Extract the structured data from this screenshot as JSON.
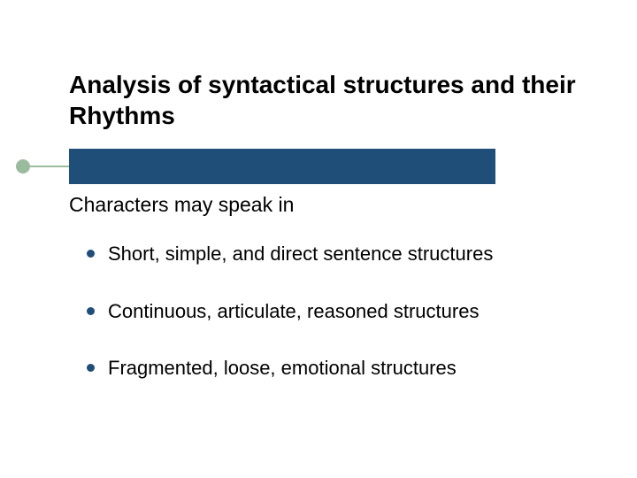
{
  "slide": {
    "title": "Analysis of syntactical structures and their Rhythms",
    "intro": "Characters may speak in",
    "bullets": [
      "Short, simple, and direct sentence structures",
      "Continuous, articulate, reasoned structures",
      "Fragmented, loose, emotional structures"
    ]
  },
  "styling": {
    "background_color": "#ffffff",
    "title_color": "#000000",
    "title_fontsize": 28,
    "title_fontweight": "bold",
    "body_color": "#000000",
    "body_fontsize": 22,
    "intro_fontsize": 23,
    "bullet_marker_color": "#1f4e79",
    "bullet_marker_size": 9,
    "underline_bar_color": "#1f4e79",
    "underline_bar_width": 482,
    "underline_bar_height": 40,
    "underline_accent_color": "#9bbb9e",
    "underline_circle_size": 16,
    "font_family": "Arial"
  }
}
